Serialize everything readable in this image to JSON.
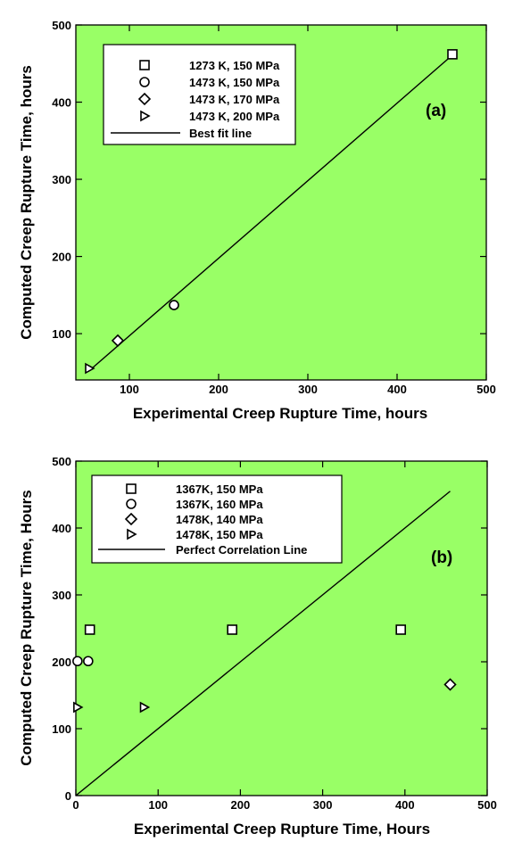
{
  "colors": {
    "plot_bg": "#99ff66",
    "ink": "#000000",
    "marker_fill": "#ffffff"
  },
  "chart_data": [
    {
      "type": "scatter",
      "panel_label": "(a)",
      "xlabel": "Experimental Creep Rupture Time, hours",
      "ylabel": "Computed Creep Rupture Time, hours",
      "xlim": [
        40,
        500
      ],
      "ylim": [
        40,
        500
      ],
      "xticks": [
        100,
        200,
        300,
        400,
        500
      ],
      "yticks": [
        100,
        200,
        300,
        400,
        500
      ],
      "grid": false,
      "legend_position": "top-left",
      "series": [
        {
          "name": "1273 K, 150 MPa",
          "marker": "square",
          "points": [
            [
              462,
              462
            ]
          ]
        },
        {
          "name": "1473 K, 150 MPa",
          "marker": "circle",
          "points": [
            [
              150,
              137
            ]
          ]
        },
        {
          "name": "1473 K, 170 MPa",
          "marker": "diamond",
          "points": [
            [
              87,
              91
            ]
          ]
        },
        {
          "name": "1473 K, 200 MPa",
          "marker": "triangle-right",
          "points": [
            [
              55,
              55
            ]
          ]
        }
      ],
      "lines": [
        {
          "name": "Best fit line",
          "points": [
            [
              55,
              52
            ],
            [
              462,
              461
            ]
          ]
        }
      ]
    },
    {
      "type": "scatter",
      "panel_label": "(b)",
      "xlabel": "Experimental Creep Rupture Time, Hours",
      "ylabel": "Computed Creep Rupture Time, Hours",
      "xlim": [
        0,
        500
      ],
      "ylim": [
        0,
        500
      ],
      "xticks": [
        0,
        100,
        200,
        300,
        400,
        500
      ],
      "yticks": [
        0,
        100,
        200,
        300,
        400,
        500
      ],
      "grid": false,
      "legend_position": "top-left",
      "series": [
        {
          "name": "1367K, 150 MPa",
          "marker": "square",
          "points": [
            [
              17,
              248
            ],
            [
              190,
              248
            ],
            [
              395,
              248
            ]
          ]
        },
        {
          "name": "1367K, 160 MPa",
          "marker": "circle",
          "points": [
            [
              2,
              201
            ],
            [
              15,
              201
            ]
          ]
        },
        {
          "name": "1478K, 140 MPa",
          "marker": "diamond",
          "points": [
            [
              455,
              166
            ]
          ]
        },
        {
          "name": "1478K, 150 MPa",
          "marker": "triangle-right",
          "points": [
            [
              2,
              132
            ],
            [
              83,
              132
            ]
          ]
        }
      ],
      "lines": [
        {
          "name": "Perfect Correlation Line",
          "points": [
            [
              0,
              0
            ],
            [
              455,
              455
            ]
          ]
        }
      ]
    }
  ]
}
